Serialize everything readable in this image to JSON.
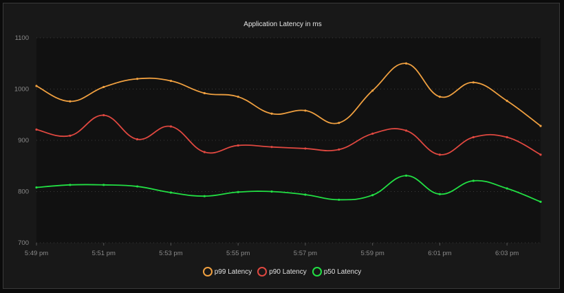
{
  "chart_data": {
    "type": "line",
    "title": "Application Latency in ms",
    "xlabel": "",
    "ylabel": "",
    "x": [
      "5:49 pm",
      "5:50 pm",
      "5:51 pm",
      "5:52 pm",
      "5:53 pm",
      "5:54 pm",
      "5:55 pm",
      "5:56 pm",
      "5:57 pm",
      "5:58 pm",
      "5:59 pm",
      "6:00 pm",
      "6:01 pm",
      "6:02 pm",
      "6:03 pm",
      "6:04 pm"
    ],
    "x_tick_labels": [
      "5:49 pm",
      "5:51 pm",
      "5:53 pm",
      "5:55 pm",
      "5:57 pm",
      "5:59 pm",
      "6:01 pm",
      "6:03 pm"
    ],
    "ylim": [
      700,
      1100
    ],
    "y_ticks": [
      700,
      800,
      900,
      1000,
      1100
    ],
    "grid": true,
    "legend_position": "bottom",
    "series": [
      {
        "name": "p99 Latency",
        "color": "#f0a040",
        "values": [
          1006,
          976,
          1004,
          1020,
          1016,
          992,
          985,
          952,
          958,
          934,
          997,
          1050,
          985,
          1013,
          977,
          928
        ]
      },
      {
        "name": "p90 Latency",
        "color": "#e04840",
        "values": [
          921,
          909,
          949,
          902,
          927,
          877,
          890,
          887,
          884,
          882,
          913,
          919,
          872,
          906,
          906,
          872
        ]
      },
      {
        "name": "p50 Latency",
        "color": "#22e044",
        "values": [
          808,
          813,
          813,
          810,
          798,
          791,
          799,
          800,
          794,
          784,
          793,
          831,
          795,
          821,
          806,
          780
        ]
      }
    ]
  }
}
